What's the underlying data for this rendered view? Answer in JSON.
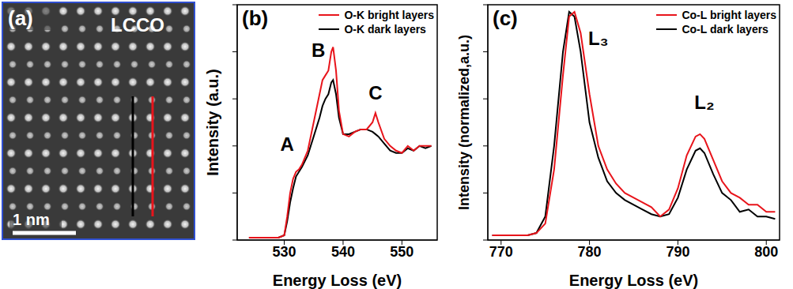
{
  "chart_data": [
    {
      "type": "image",
      "panel": "(a)",
      "title": "LCCO",
      "scale_bar": "1 nm"
    },
    {
      "type": "line",
      "panel": "(b)",
      "x_label": "Energy Loss (eV)",
      "y_label": "Intensity (a.u.)",
      "x": [
        524,
        526,
        528,
        529,
        530,
        530.5,
        531,
        531.5,
        532,
        532.5,
        533,
        534,
        535,
        536,
        536.5,
        537,
        537.5,
        538,
        538.3,
        538.8,
        539.3,
        540,
        541,
        542,
        543,
        544,
        545,
        545.5,
        546,
        547,
        548,
        549,
        550,
        551,
        552,
        553,
        554,
        555
      ],
      "series": [
        {
          "name": "O-K bright layers",
          "color": "#e8141b",
          "values": [
            0.01,
            0.01,
            0.01,
            0.01,
            0.02,
            0.1,
            0.2,
            0.26,
            0.29,
            0.3,
            0.32,
            0.38,
            0.5,
            0.62,
            0.68,
            0.7,
            0.72,
            0.8,
            0.82,
            0.72,
            0.55,
            0.45,
            0.44,
            0.46,
            0.47,
            0.47,
            0.5,
            0.54,
            0.5,
            0.43,
            0.4,
            0.38,
            0.37,
            0.4,
            0.38,
            0.4,
            0.4,
            0.4
          ]
        },
        {
          "name": "O-K dark layers",
          "color": "#000000",
          "values": [
            0.01,
            0.01,
            0.01,
            0.01,
            0.02,
            0.08,
            0.16,
            0.22,
            0.27,
            0.29,
            0.31,
            0.36,
            0.44,
            0.52,
            0.57,
            0.6,
            0.62,
            0.67,
            0.68,
            0.62,
            0.52,
            0.45,
            0.45,
            0.46,
            0.47,
            0.47,
            0.46,
            0.45,
            0.44,
            0.41,
            0.38,
            0.37,
            0.37,
            0.39,
            0.38,
            0.4,
            0.39,
            0.4
          ]
        }
      ],
      "xlim": [
        522,
        556
      ],
      "xticks": [
        530,
        540,
        550
      ],
      "ylim": [
        0,
        1
      ],
      "yticks": [
        0,
        0.2,
        0.4,
        0.6,
        0.8,
        1
      ],
      "tick_labels": "x",
      "legend": "upper right",
      "annotations": [
        {
          "text": "A",
          "x": 530.5,
          "y": 0.4
        },
        {
          "text": "B",
          "x": 535.8,
          "y": 0.8
        },
        {
          "text": "C",
          "x": 545.5,
          "y": 0.62
        }
      ]
    },
    {
      "type": "line",
      "panel": "(c)",
      "x_label": "Energy Loss (eV)",
      "y_label": "Intensity (normalized,a.u.)",
      "x": [
        769,
        771,
        773,
        774,
        775,
        776,
        777,
        777.7,
        778.3,
        779,
        780,
        781,
        782,
        783,
        784,
        785,
        786,
        787,
        788,
        789,
        790,
        791,
        792,
        792.5,
        793,
        794,
        795,
        796,
        797,
        798,
        799,
        800,
        801
      ],
      "series": [
        {
          "name": "Co-L bright layers",
          "color": "#e8141b",
          "values": [
            0.02,
            0.02,
            0.02,
            0.03,
            0.07,
            0.3,
            0.7,
            0.95,
            0.97,
            0.88,
            0.62,
            0.4,
            0.3,
            0.24,
            0.2,
            0.18,
            0.16,
            0.14,
            0.1,
            0.13,
            0.22,
            0.36,
            0.44,
            0.45,
            0.43,
            0.34,
            0.25,
            0.2,
            0.18,
            0.15,
            0.15,
            0.12,
            0.12
          ]
        },
        {
          "name": "Co-L dark layers",
          "color": "#000000",
          "values": [
            0.02,
            0.02,
            0.02,
            0.03,
            0.1,
            0.4,
            0.8,
            0.97,
            0.95,
            0.8,
            0.5,
            0.35,
            0.25,
            0.2,
            0.17,
            0.15,
            0.13,
            0.11,
            0.1,
            0.11,
            0.18,
            0.3,
            0.38,
            0.39,
            0.37,
            0.28,
            0.2,
            0.17,
            0.12,
            0.13,
            0.1,
            0.1,
            0.09
          ]
        }
      ],
      "xlim": [
        768.5,
        801.5
      ],
      "xticks": [
        770,
        780,
        790,
        800
      ],
      "ylim": [
        0,
        1
      ],
      "yticks": [
        0,
        0.2,
        0.4,
        0.6,
        0.8,
        1
      ],
      "tick_labels": "x",
      "legend": "upper right",
      "annotations": [
        {
          "text": "L₃",
          "x": 781,
          "y": 0.85
        },
        {
          "text": "L₂",
          "x": 793,
          "y": 0.58
        }
      ]
    }
  ]
}
